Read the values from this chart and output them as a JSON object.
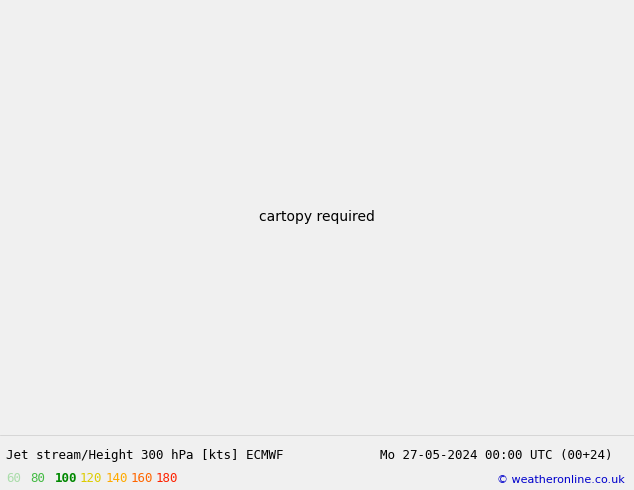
{
  "title_left": "Jet stream/Height 300 hPa [kts] ECMWF",
  "title_right": "Mo 27-05-2024 00:00 UTC (00+24)",
  "copyright": "© weatheronline.co.uk",
  "legend_values": [
    "60",
    "80",
    "100",
    "120",
    "140",
    "160",
    "180"
  ],
  "legend_colors_text": [
    "#aaddaa",
    "#44bb44",
    "#008800",
    "#ddcc00",
    "#ffaa00",
    "#ff6600",
    "#ff2200"
  ],
  "figsize": [
    6.34,
    4.9
  ],
  "dpi": 100,
  "extent": [
    -175,
    -50,
    15,
    85
  ],
  "proj_lon": -100,
  "wind_fill_levels": [
    60,
    80,
    100,
    120,
    140,
    160,
    180,
    999
  ],
  "wind_fill_colors": [
    "#c8f0c8",
    "#88dd88",
    "#22aa22",
    "#eedd00",
    "#ffaa00",
    "#ff6600",
    "#ff1100"
  ],
  "contour_color": "black",
  "contour_linewidth": 1.4,
  "land_color": "#e8e8e8",
  "ocean_color": "#f0f0f0",
  "border_color": "#888888",
  "bottom_bg": "#f0f0f0",
  "bottom_left_text_color": "black",
  "bottom_right_text_color": "black",
  "copyright_color": "#0000cc"
}
